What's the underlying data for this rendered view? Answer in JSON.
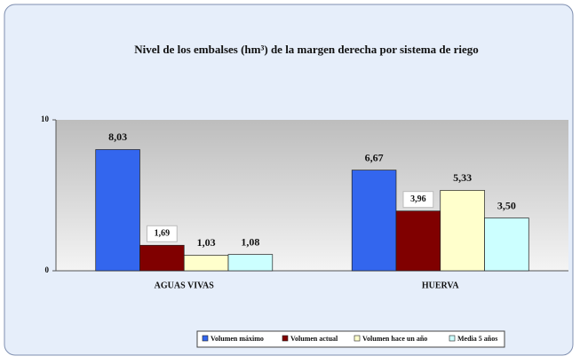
{
  "chart_data": {
    "type": "bar",
    "title": "Nivel de los embalses (hm³) de la margen derecha por sistema de riego",
    "categories": [
      "AGUAS VIVAS",
      "HUERVA"
    ],
    "series": [
      {
        "name": "Volumen máximo",
        "color": "#3366ee",
        "values": [
          8.03,
          6.67
        ],
        "value_labels": [
          "8,03",
          "6,67"
        ]
      },
      {
        "name": "Volumen actual",
        "color": "#800000",
        "values": [
          1.69,
          3.96
        ],
        "value_labels": [
          "1,69",
          "3,96"
        ]
      },
      {
        "name": "Volumen hace un año",
        "color": "#ffffcc",
        "values": [
          1.03,
          5.33
        ],
        "value_labels": [
          "1,03",
          "5,33"
        ]
      },
      {
        "name": "Media 5 años",
        "color": "#ccffff",
        "values": [
          1.08,
          3.5
        ],
        "value_labels": [
          "1,08",
          "3,50"
        ]
      }
    ],
    "ylim": [
      0,
      10
    ],
    "yticks": [
      0,
      10
    ],
    "legend": "bottom"
  }
}
